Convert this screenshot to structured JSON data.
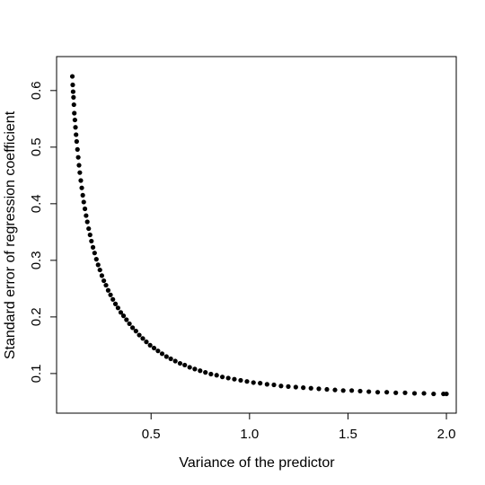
{
  "chart_data": {
    "type": "scatter",
    "title": "",
    "xlabel": "Variance of the predictor",
    "ylabel": "Standard error of regression coefficient",
    "xlim": [
      0.02,
      2.05
    ],
    "ylim": [
      0.03,
      0.66
    ],
    "xticks": [
      0.5,
      1.0,
      1.5,
      2.0
    ],
    "xtick_labels": [
      "0.5",
      "1.0",
      "1.5",
      "2.0"
    ],
    "yticks": [
      0.1,
      0.2,
      0.3,
      0.4,
      0.5,
      0.6
    ],
    "ytick_labels": [
      "0.1",
      "0.2",
      "0.3",
      "0.4",
      "0.5",
      "0.6"
    ],
    "grid": false,
    "point_color": "#000000",
    "series": [
      {
        "points": [
          [
            0.1,
            0.625
          ],
          [
            0.102,
            0.61
          ],
          [
            0.104,
            0.598
          ],
          [
            0.106,
            0.588
          ],
          [
            0.108,
            0.575
          ],
          [
            0.11,
            0.56
          ],
          [
            0.113,
            0.548
          ],
          [
            0.116,
            0.535
          ],
          [
            0.119,
            0.522
          ],
          [
            0.122,
            0.51
          ],
          [
            0.126,
            0.496
          ],
          [
            0.13,
            0.482
          ],
          [
            0.134,
            0.468
          ],
          [
            0.138,
            0.455
          ],
          [
            0.143,
            0.441
          ],
          [
            0.148,
            0.428
          ],
          [
            0.153,
            0.415
          ],
          [
            0.158,
            0.403
          ],
          [
            0.164,
            0.391
          ],
          [
            0.17,
            0.379
          ],
          [
            0.176,
            0.368
          ],
          [
            0.183,
            0.356
          ],
          [
            0.19,
            0.345
          ],
          [
            0.197,
            0.334
          ],
          [
            0.205,
            0.323
          ],
          [
            0.213,
            0.313
          ],
          [
            0.222,
            0.302
          ],
          [
            0.231,
            0.292
          ],
          [
            0.24,
            0.283
          ],
          [
            0.25,
            0.273
          ],
          [
            0.26,
            0.264
          ],
          [
            0.271,
            0.256
          ],
          [
            0.282,
            0.247
          ],
          [
            0.294,
            0.239
          ],
          [
            0.306,
            0.231
          ],
          [
            0.319,
            0.223
          ],
          [
            0.332,
            0.216
          ],
          [
            0.346,
            0.208
          ],
          [
            0.36,
            0.202
          ],
          [
            0.375,
            0.195
          ],
          [
            0.39,
            0.188
          ],
          [
            0.406,
            0.181
          ],
          [
            0.423,
            0.175
          ],
          [
            0.44,
            0.168
          ],
          [
            0.458,
            0.162
          ],
          [
            0.476,
            0.156
          ],
          [
            0.495,
            0.15
          ],
          [
            0.515,
            0.145
          ],
          [
            0.535,
            0.14
          ],
          [
            0.556,
            0.135
          ],
          [
            0.578,
            0.13
          ],
          [
            0.6,
            0.126
          ],
          [
            0.623,
            0.122
          ],
          [
            0.647,
            0.118
          ],
          [
            0.671,
            0.115
          ],
          [
            0.696,
            0.111
          ],
          [
            0.722,
            0.108
          ],
          [
            0.749,
            0.105
          ],
          [
            0.776,
            0.102
          ],
          [
            0.804,
            0.099
          ],
          [
            0.833,
            0.097
          ],
          [
            0.862,
            0.094
          ],
          [
            0.892,
            0.092
          ],
          [
            0.923,
            0.09
          ],
          [
            0.955,
            0.088
          ],
          [
            0.987,
            0.086
          ],
          [
            1.02,
            0.084
          ],
          [
            1.054,
            0.083
          ],
          [
            1.089,
            0.081
          ],
          [
            1.124,
            0.08
          ],
          [
            1.16,
            0.078
          ],
          [
            1.197,
            0.077
          ],
          [
            1.235,
            0.076
          ],
          [
            1.273,
            0.075
          ],
          [
            1.312,
            0.074
          ],
          [
            1.352,
            0.073
          ],
          [
            1.393,
            0.072
          ],
          [
            1.434,
            0.071
          ],
          [
            1.476,
            0.07
          ],
          [
            1.519,
            0.07
          ],
          [
            1.562,
            0.069
          ],
          [
            1.606,
            0.068
          ],
          [
            1.651,
            0.067
          ],
          [
            1.697,
            0.067
          ],
          [
            1.743,
            0.066
          ],
          [
            1.79,
            0.066
          ],
          [
            1.838,
            0.065
          ],
          [
            1.886,
            0.065
          ],
          [
            1.935,
            0.064
          ],
          [
            1.985,
            0.064
          ],
          [
            2.0,
            0.064
          ]
        ]
      }
    ]
  }
}
